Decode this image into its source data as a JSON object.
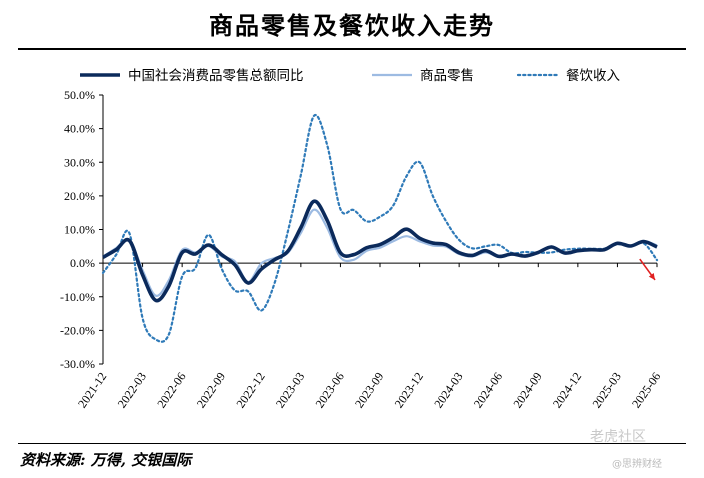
{
  "title": "商品零售及餐饮收入走势",
  "source": "资料来源: 万得, 交银国际",
  "watermark": {
    "line1": "老虎社区",
    "line2": "@思辨财经"
  },
  "chart_data": {
    "type": "line",
    "title": "商品零售及餐饮收入走势",
    "ylim": [
      -30,
      50
    ],
    "yticks": [
      "50.0%",
      "40.0%",
      "30.0%",
      "20.0%",
      "10.0%",
      "0.0%",
      "-10.0%",
      "-20.0%",
      "-30.0%"
    ],
    "ytick_values": [
      50,
      40,
      30,
      20,
      10,
      0,
      -10,
      -20,
      -30
    ],
    "xticks": [
      "2021-12",
      "2022-03",
      "2022-06",
      "2022-09",
      "2022-12",
      "2023-03",
      "2023-06",
      "2023-09",
      "2023-12",
      "2024-03",
      "2024-06",
      "2024-09",
      "2024-12",
      "2025-03",
      "2025-06"
    ],
    "x": [
      "2021-12",
      "2022-01",
      "2022-02",
      "2022-03",
      "2022-04",
      "2022-05",
      "2022-06",
      "2022-07",
      "2022-08",
      "2022-09",
      "2022-10",
      "2022-11",
      "2022-12",
      "2023-01",
      "2023-02",
      "2023-03",
      "2023-04",
      "2023-05",
      "2023-06",
      "2023-07",
      "2023-08",
      "2023-09",
      "2023-10",
      "2023-11",
      "2023-12",
      "2024-01",
      "2024-02",
      "2024-03",
      "2024-04",
      "2024-05",
      "2024-06",
      "2024-07",
      "2024-08",
      "2024-09",
      "2024-10",
      "2024-11",
      "2024-12",
      "2025-01",
      "2025-02",
      "2025-03",
      "2025-04",
      "2025-05",
      "2025-06"
    ],
    "grid": false,
    "legend_position": "top",
    "series": [
      {
        "name": "中国社会消费品零售总额同比",
        "style": "solid-thick",
        "color": "#0b2a5b",
        "values": [
          1.7,
          4.0,
          6.7,
          -3.5,
          -11.1,
          -6.7,
          3.1,
          2.7,
          5.4,
          2.5,
          -0.5,
          -5.9,
          -1.8,
          1.0,
          3.5,
          10.6,
          18.4,
          12.7,
          3.1,
          2.5,
          4.6,
          5.5,
          7.6,
          10.1,
          7.4,
          6.0,
          5.5,
          3.1,
          2.3,
          3.7,
          2.0,
          2.7,
          2.1,
          3.2,
          4.8,
          3.0,
          3.7,
          4.0,
          4.0,
          5.9,
          5.1,
          6.4,
          4.8
        ]
      },
      {
        "name": "商品零售",
        "style": "solid-light",
        "color": "#9dbbe2",
        "values": [
          1.9,
          4.5,
          6.9,
          -2.1,
          -9.7,
          -5.0,
          3.9,
          3.2,
          5.1,
          2.0,
          0.5,
          -5.6,
          -0.1,
          1.5,
          3.0,
          9.0,
          15.9,
          10.5,
          1.7,
          1.0,
          3.7,
          4.6,
          6.5,
          8.0,
          6.5,
          5.2,
          4.9,
          2.7,
          2.0,
          3.2,
          2.0,
          2.7,
          2.0,
          3.3,
          5.0,
          3.0,
          3.9,
          4.1,
          4.1,
          6.0,
          5.0,
          6.5,
          5.3
        ]
      },
      {
        "name": "餐饮收入",
        "style": "dotted",
        "color": "#2f7ab8",
        "values": [
          -2.9,
          2.5,
          8.9,
          -16.4,
          -22.7,
          -21.1,
          -4.0,
          -1.5,
          8.4,
          -1.7,
          -8.1,
          -8.4,
          -14.1,
          -6.0,
          9.2,
          26.3,
          43.8,
          35.1,
          16.1,
          15.8,
          12.4,
          13.8,
          17.1,
          25.8,
          30.0,
          20.0,
          12.5,
          6.9,
          4.4,
          5.0,
          5.4,
          3.0,
          3.3,
          3.1,
          3.2,
          4.0,
          4.3,
          4.3,
          4.3,
          5.6,
          5.2,
          5.9,
          0.9
        ]
      }
    ],
    "annotation": {
      "type": "arrow",
      "color": "#e02020",
      "direction": "down-right"
    }
  }
}
